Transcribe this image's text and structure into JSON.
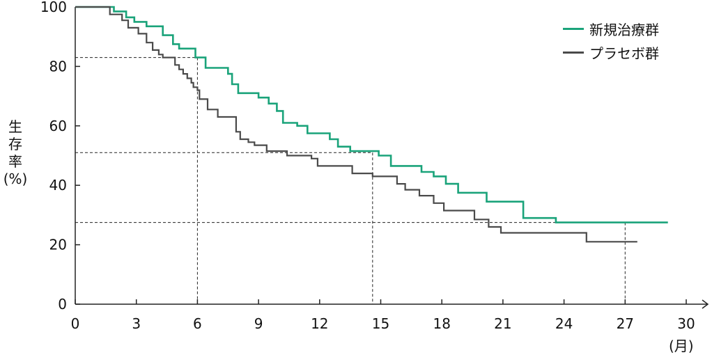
{
  "chart_data": {
    "type": "line",
    "step": true,
    "title": "",
    "ylabel_chars": [
      "生",
      "存",
      "率"
    ],
    "ylabel_unit": "(%)",
    "xunit": "(月)",
    "xlim": [
      0,
      30
    ],
    "ylim": [
      0,
      100
    ],
    "xticks": [
      "0",
      "3",
      "6",
      "9",
      "12",
      "15",
      "18",
      "21",
      "24",
      "27",
      "30"
    ],
    "yticks": [
      "0",
      "20",
      "40",
      "60",
      "80",
      "100"
    ],
    "grid": false,
    "legend_position": "top-right",
    "series": [
      {
        "name": "新規治療群",
        "color": "#1aa37a",
        "points": [
          [
            0,
            100
          ],
          [
            1.9,
            100
          ],
          [
            1.9,
            98.5
          ],
          [
            2.5,
            98.5
          ],
          [
            2.5,
            96.5
          ],
          [
            2.9,
            96.5
          ],
          [
            2.9,
            95
          ],
          [
            3.5,
            95
          ],
          [
            3.5,
            93.5
          ],
          [
            4.3,
            93.5
          ],
          [
            4.3,
            90.5
          ],
          [
            4.8,
            90.5
          ],
          [
            4.8,
            87.5
          ],
          [
            5.1,
            87.5
          ],
          [
            5.1,
            86
          ],
          [
            5.9,
            86
          ],
          [
            5.9,
            83
          ],
          [
            6.4,
            83
          ],
          [
            6.4,
            79.5
          ],
          [
            7.5,
            79.5
          ],
          [
            7.5,
            77.5
          ],
          [
            7.7,
            77.5
          ],
          [
            7.7,
            74
          ],
          [
            8.0,
            74
          ],
          [
            8.0,
            71
          ],
          [
            9.0,
            71
          ],
          [
            9.0,
            69.5
          ],
          [
            9.5,
            69.5
          ],
          [
            9.5,
            67.5
          ],
          [
            9.9,
            67.5
          ],
          [
            9.9,
            65
          ],
          [
            10.2,
            65
          ],
          [
            10.2,
            61
          ],
          [
            10.9,
            61
          ],
          [
            10.9,
            60
          ],
          [
            11.4,
            60
          ],
          [
            11.4,
            57.5
          ],
          [
            12.5,
            57.5
          ],
          [
            12.5,
            55.5
          ],
          [
            12.9,
            55.5
          ],
          [
            12.9,
            53
          ],
          [
            13.5,
            53
          ],
          [
            13.5,
            51.5
          ],
          [
            14.9,
            51.5
          ],
          [
            14.9,
            50
          ],
          [
            15.5,
            50
          ],
          [
            15.5,
            46.5
          ],
          [
            17.0,
            46.5
          ],
          [
            17.0,
            44.5
          ],
          [
            17.6,
            44.5
          ],
          [
            17.6,
            43
          ],
          [
            18.2,
            43
          ],
          [
            18.2,
            40.5
          ],
          [
            18.8,
            40.5
          ],
          [
            18.8,
            37.5
          ],
          [
            20.2,
            37.5
          ],
          [
            20.2,
            34.5
          ],
          [
            22.0,
            34.5
          ],
          [
            22.0,
            29
          ],
          [
            23.6,
            29
          ],
          [
            23.6,
            27.5
          ],
          [
            29.1,
            27.5
          ]
        ]
      },
      {
        "name": "プラセボ群",
        "color": "#4a4a4a",
        "points": [
          [
            0,
            100
          ],
          [
            1.7,
            100
          ],
          [
            1.7,
            97.5
          ],
          [
            2.3,
            97.5
          ],
          [
            2.3,
            95.5
          ],
          [
            2.6,
            95.5
          ],
          [
            2.6,
            93
          ],
          [
            3.1,
            93
          ],
          [
            3.1,
            91
          ],
          [
            3.5,
            91
          ],
          [
            3.5,
            88
          ],
          [
            3.8,
            88
          ],
          [
            3.8,
            85.5
          ],
          [
            4.1,
            85.5
          ],
          [
            4.1,
            84
          ],
          [
            4.3,
            84
          ],
          [
            4.3,
            83
          ],
          [
            4.9,
            83
          ],
          [
            4.9,
            80.5
          ],
          [
            5.1,
            80.5
          ],
          [
            5.1,
            79
          ],
          [
            5.3,
            79
          ],
          [
            5.3,
            77.5
          ],
          [
            5.5,
            77.5
          ],
          [
            5.5,
            76
          ],
          [
            5.7,
            76
          ],
          [
            5.7,
            74.5
          ],
          [
            5.8,
            74.5
          ],
          [
            5.8,
            73
          ],
          [
            6.0,
            73
          ],
          [
            6.0,
            72
          ],
          [
            6.1,
            72
          ],
          [
            6.1,
            69
          ],
          [
            6.5,
            69
          ],
          [
            6.5,
            65.5
          ],
          [
            7.0,
            65.5
          ],
          [
            7.0,
            63
          ],
          [
            7.9,
            63
          ],
          [
            7.9,
            58
          ],
          [
            8.1,
            58
          ],
          [
            8.1,
            55.5
          ],
          [
            8.5,
            55.5
          ],
          [
            8.5,
            54.5
          ],
          [
            8.8,
            54.5
          ],
          [
            8.8,
            53.5
          ],
          [
            9.4,
            53.5
          ],
          [
            9.4,
            51.5
          ],
          [
            10.4,
            51.5
          ],
          [
            10.4,
            50
          ],
          [
            11.6,
            50
          ],
          [
            11.6,
            49
          ],
          [
            11.9,
            49
          ],
          [
            11.9,
            46.5
          ],
          [
            13.6,
            46.5
          ],
          [
            13.6,
            44
          ],
          [
            14.6,
            44
          ],
          [
            14.6,
            43
          ],
          [
            15.8,
            43
          ],
          [
            15.8,
            40.5
          ],
          [
            16.2,
            40.5
          ],
          [
            16.2,
            38.5
          ],
          [
            16.9,
            38.5
          ],
          [
            16.9,
            36.5
          ],
          [
            17.6,
            36.5
          ],
          [
            17.6,
            34
          ],
          [
            18.1,
            34
          ],
          [
            18.1,
            31.5
          ],
          [
            19.6,
            31.5
          ],
          [
            19.6,
            28.5
          ],
          [
            20.3,
            28.5
          ],
          [
            20.3,
            26
          ],
          [
            20.9,
            26
          ],
          [
            20.9,
            24
          ],
          [
            25.1,
            24
          ],
          [
            25.1,
            21
          ],
          [
            27.6,
            21
          ]
        ]
      }
    ],
    "reference_lines": [
      {
        "y": 83,
        "x": 6
      },
      {
        "y": 51,
        "x": 14.6
      },
      {
        "y": 27.5,
        "x": 27.0
      }
    ]
  }
}
